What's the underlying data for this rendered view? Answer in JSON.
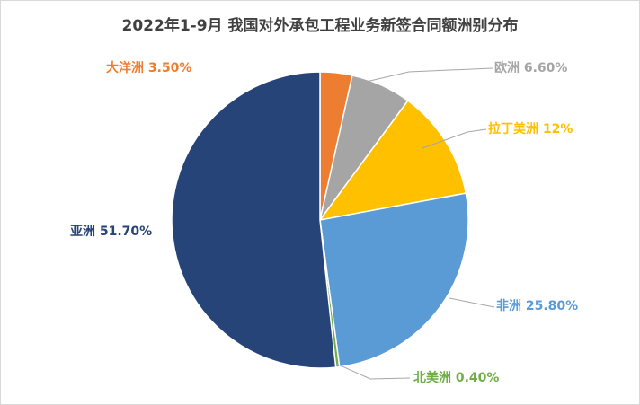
{
  "chart_data": {
    "type": "pie",
    "title": "2022年1-9月 我国对外承包工程业务新签合同额洲别分布",
    "unit": "%",
    "slices": [
      {
        "name": "大洋洲",
        "value": 3.5,
        "label": "3.50%",
        "color": "#ED7D31"
      },
      {
        "name": "欧洲",
        "value": 6.6,
        "label": "6.60%",
        "color": "#A5A5A5"
      },
      {
        "name": "拉丁美洲",
        "value": 12,
        "label": "12%",
        "color": "#FFC000"
      },
      {
        "name": "非洲",
        "value": 25.8,
        "label": "25.80%",
        "color": "#5B9BD5"
      },
      {
        "name": "北美洲",
        "value": 0.4,
        "label": "0.40%",
        "color": "#70AD47"
      },
      {
        "name": "亚洲",
        "value": 51.7,
        "label": "51.70%",
        "color": "#264478"
      }
    ],
    "legend": "none",
    "data_labels": "outside with leader lines"
  }
}
